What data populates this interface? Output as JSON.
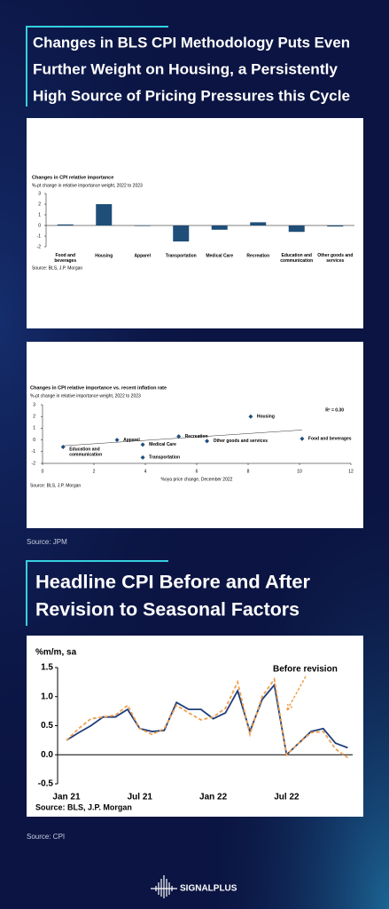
{
  "headings": [
    [
      "Changes in BLS CPI Methodology Puts Even",
      "Further Weight on Housing, a Persistently",
      "High Source of Pricing Pressures this Cycle"
    ],
    [
      "Headline CPI Before and After",
      "Revision to Seasonal Factors"
    ]
  ],
  "sources": [
    "Source: JPM",
    "Source: CPI"
  ],
  "logo": "SIGNALPLUS",
  "chart_data": [
    {
      "type": "bar",
      "title": "Changes in CPI relative importance",
      "subtitle": "%-pt change in relative importance weight, 2022 to 2023",
      "categories": [
        "Food and beverages",
        "Housing",
        "Apparel",
        "Transportation",
        "Medical Care",
        "Recreation",
        "Education and communication",
        "Other goods and services"
      ],
      "values": [
        0.1,
        2.0,
        0.0,
        -1.5,
        -0.4,
        0.3,
        -0.6,
        -0.1
      ],
      "color": "#1f4e79",
      "ylim": [
        -2,
        3
      ],
      "yticks": [
        3,
        2,
        1,
        0,
        -1,
        -2
      ],
      "source": "Source: BLS, J.P. Morgan"
    },
    {
      "type": "scatter",
      "title": "Changes in CPI relative importance vs. recent inflation rate",
      "subtitle": "%-pt change in relative importance weight, 2022 to 2023",
      "xlabel": "%oya price change, December 2022",
      "annotation": "R² = 0.30",
      "color": "#1f4e79",
      "points": [
        {
          "label": "Education and communication",
          "x": 0.8,
          "y": -0.6
        },
        {
          "label": "Apparel",
          "x": 2.9,
          "y": 0.0
        },
        {
          "label": "Medical Care",
          "x": 3.9,
          "y": -0.4
        },
        {
          "label": "Recreation",
          "x": 5.3,
          "y": 0.3
        },
        {
          "label": "Other goods and services",
          "x": 6.4,
          "y": -0.1
        },
        {
          "label": "Transportation",
          "x": 3.9,
          "y": -1.5
        },
        {
          "label": "Housing",
          "x": 8.1,
          "y": 2.0
        },
        {
          "label": "Food and beverages",
          "x": 10.1,
          "y": 0.1
        }
      ],
      "trendline": {
        "x": [
          0.8,
          10.1
        ],
        "y": [
          -0.5,
          0.85
        ]
      },
      "xlim": [
        0,
        12
      ],
      "xticks": [
        0,
        2,
        4,
        6,
        8,
        10,
        12
      ],
      "ylim": [
        -2,
        3
      ],
      "yticks": [
        3,
        2,
        1,
        0,
        -1,
        -2
      ],
      "source": "Source: BLS, J.P. Morgan"
    },
    {
      "type": "line",
      "ylabel": "%m/m, sa",
      "categories": [
        "Jan 21",
        null,
        null,
        null,
        null,
        null,
        "Jul 21",
        null,
        null,
        null,
        null,
        null,
        "Jan 22",
        null,
        null,
        null,
        null,
        null,
        "Jul 22",
        null,
        null,
        null,
        null,
        null
      ],
      "series": [
        {
          "color": "#1f3e7a",
          "dash": false,
          "values": [
            0.25,
            0.38,
            0.5,
            0.65,
            0.65,
            0.78,
            0.45,
            0.4,
            0.42,
            0.9,
            0.78,
            0.78,
            0.62,
            0.72,
            1.1,
            0.4,
            0.95,
            1.2,
            0.0,
            0.2,
            0.4,
            0.45,
            0.2,
            0.12
          ]
        },
        {
          "name": "Before revision",
          "color": "#f0a050",
          "dash": true,
          "values": [
            0.25,
            0.45,
            0.62,
            0.65,
            0.68,
            0.85,
            0.45,
            0.35,
            0.45,
            0.85,
            0.72,
            0.6,
            0.65,
            0.8,
            1.25,
            0.35,
            1.0,
            1.3,
            0.0,
            0.2,
            0.38,
            0.4,
            0.1,
            -0.05
          ]
        }
      ],
      "ylim": [
        -0.5,
        1.5
      ],
      "yticks": [
        {
          "value": 1.5,
          "label": "1.5"
        },
        {
          "value": 1.0,
          "label": "1.0"
        },
        {
          "value": 0.5,
          "label": "0.5"
        },
        {
          "value": 0.0,
          "label": "0.0"
        },
        {
          "value": -0.5,
          "label": "-0.5"
        }
      ],
      "source": "Source: BLS, J.P. Morgan"
    }
  ]
}
